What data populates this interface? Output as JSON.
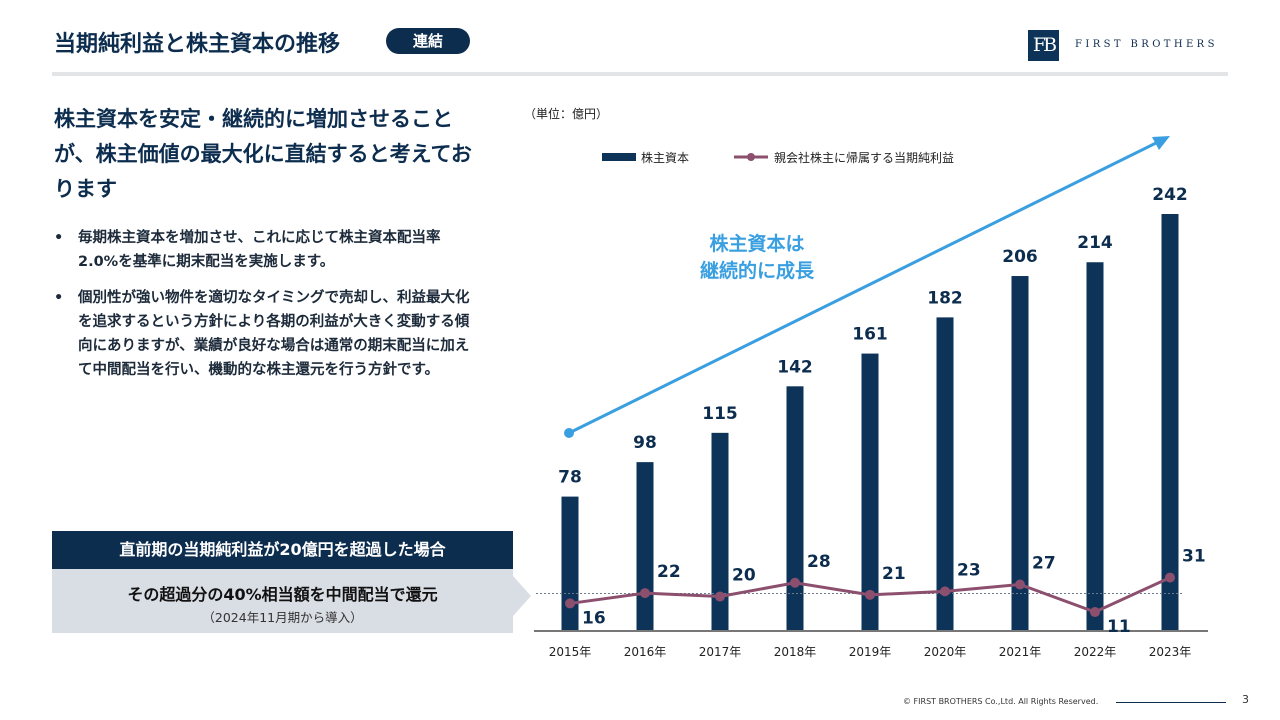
{
  "header": {
    "title": "当期純利益と株主資本の推移",
    "badge": "連結",
    "logo_mark": "FB",
    "logo_text": "FIRST BROTHERS"
  },
  "left": {
    "headline": "株主資本を安定・継続的に増加させることが、株主価値の最大化に直結すると考えております",
    "bullets": [
      "毎期株主資本を増加させ、これに応じて株主資本配当率2.0%を基準に期末配当を実施します。",
      "個別性が強い物件を適切なタイミングで売却し、利益最大化を追求するという方針により各期の利益が大きく変動する傾向にありますが、業績が良好な場合は通常の期末配当に加えて中間配当を行い、機動的な株主還元を行う方針です。"
    ],
    "box_header": "直前期の当期純利益が20億円を超過した場合",
    "box_main": "その超過分の40%相当額を中間配当で還元",
    "box_sub": "（2024年11月期から導入）"
  },
  "chart_data": {
    "type": "bar+line",
    "unit_label": "（単位：億円）",
    "categories": [
      "2015年",
      "2016年",
      "2017年",
      "2018年",
      "2019年",
      "2020年",
      "2021年",
      "2022年",
      "2023年"
    ],
    "series": [
      {
        "name": "株主資本",
        "type": "bar",
        "color": "#0d3358",
        "values": [
          78,
          98,
          115,
          142,
          161,
          182,
          206,
          214,
          242
        ]
      },
      {
        "name": "親会社株主に帰属する当期純利益",
        "type": "line",
        "color": "#8c4f6e",
        "values": [
          16,
          22,
          20,
          28,
          21,
          23,
          27,
          11,
          31
        ]
      }
    ],
    "threshold_line": 20,
    "annotation": "株主資本は\n継続的に成長",
    "annotation_color": "#3a9fe0",
    "legend_position": "top",
    "ylim": [
      0,
      242
    ]
  },
  "footer": {
    "copyright": "© FIRST BROTHERS Co.,Ltd. All Rights Reserved.",
    "page": "3"
  }
}
